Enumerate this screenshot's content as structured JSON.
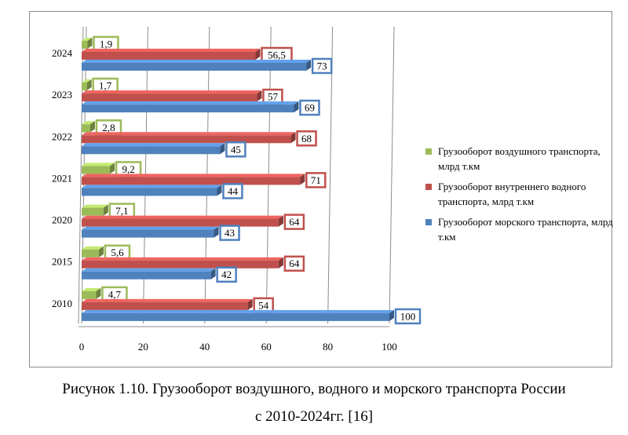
{
  "chart_data": {
    "type": "bar",
    "orientation": "horizontal",
    "categories": [
      "2010",
      "2015",
      "2020",
      "2021",
      "2022",
      "2023",
      "2024"
    ],
    "series": [
      {
        "name": "Грузооборот воздушного транспорта, млрд т.км",
        "color": "#9bbb59",
        "values": [
          4.7,
          5.6,
          7.1,
          9.2,
          2.8,
          1.7,
          1.9
        ],
        "labels": [
          "4,7",
          "5,6",
          "7,1",
          "9,2",
          "2,8",
          "1,7",
          "1,9"
        ]
      },
      {
        "name": "Грузооборот внутреннего водного транспорта, млрд т.км",
        "color": "#c0504d",
        "values": [
          54,
          64,
          64,
          71,
          68,
          57,
          56.5
        ],
        "labels": [
          "54",
          "64",
          "64",
          "71",
          "68",
          "57",
          "56,5"
        ]
      },
      {
        "name": "Грузооборот морского транспорта, млрд т.км",
        "color": "#4f81bd",
        "values": [
          100,
          42,
          43,
          44,
          45,
          69,
          73
        ],
        "labels": [
          "100",
          "42",
          "43",
          "44",
          "45",
          "69",
          "73"
        ]
      }
    ],
    "xlim": [
      0,
      100
    ],
    "xticks": [
      "0",
      "20",
      "40",
      "60",
      "80",
      "100"
    ],
    "grid": true,
    "legend_position": "right",
    "effect": "3d"
  },
  "caption": {
    "line1": "Рисунок 1.10. Грузооборот воздушного, водного и морского транспорта России",
    "line2": "с 2010-2024гг. [16]"
  }
}
